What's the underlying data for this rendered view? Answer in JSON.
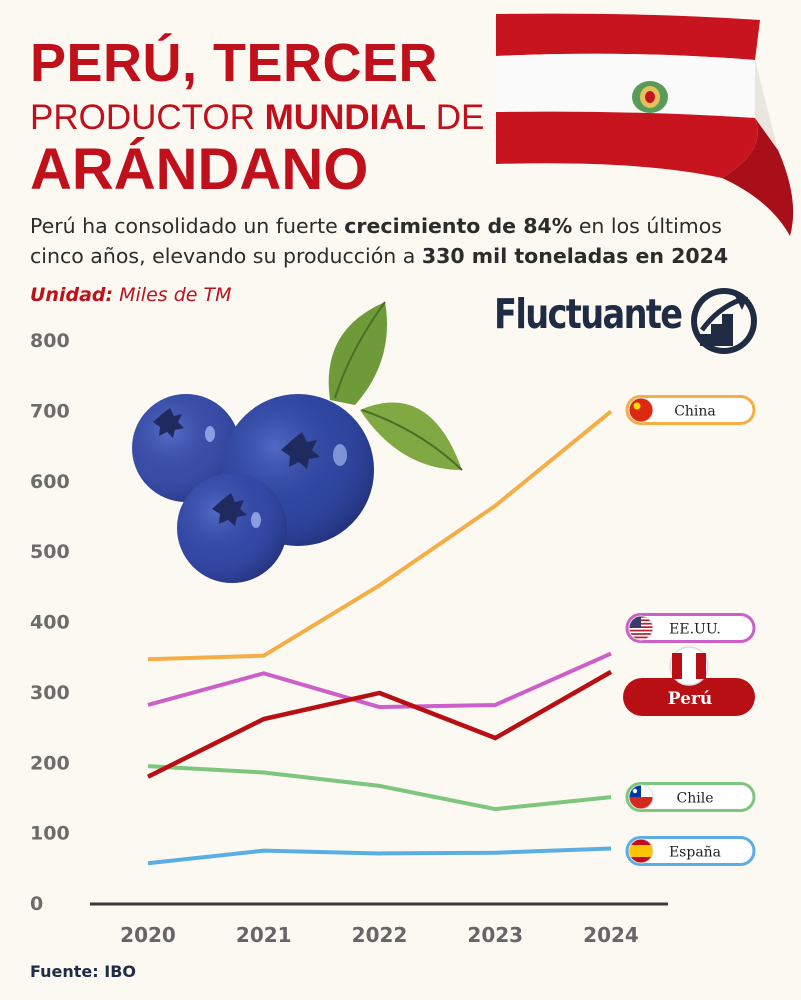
{
  "header": {
    "title_line1": "PERÚ, TERCER",
    "title_line2_pre": "PRODUCTOR ",
    "title_line2_bold": "MUNDIAL",
    "title_line2_post": " DE",
    "title_line3": "ARÁNDANO",
    "subtitle_part1": "Perú ha consolidado un fuerte ",
    "subtitle_bold1": "crecimiento de 84%",
    "subtitle_part2": " en los últimos cinco años, elevando su producción a ",
    "subtitle_bold2": "330 mil toneladas en 2024",
    "unit_label": "Unidad:",
    "unit_value": " Miles de TM"
  },
  "brand": {
    "name": "Fluctuante",
    "icon": "rising-stairs-arrow-icon"
  },
  "source": "Fuente: IBO",
  "decorations": {
    "flag": "peru-flag-ribbon",
    "illustration": "blueberries-with-leaves"
  },
  "chart_data": {
    "type": "line",
    "x": [
      "2020",
      "2021",
      "2022",
      "2023",
      "2024"
    ],
    "ylim": [
      0,
      800
    ],
    "yticks": [
      "0",
      "100",
      "200",
      "300",
      "400",
      "500",
      "600",
      "700",
      "800"
    ],
    "grid": false,
    "legend": "right-end-labels",
    "series": [
      {
        "name": "China",
        "values": [
          345,
          350,
          450,
          563,
          697
        ],
        "color": "#f5ad45",
        "flag": "china-flag-icon",
        "highlight": false
      },
      {
        "name": "EE.UU.",
        "values": [
          280,
          325,
          277,
          280,
          353
        ],
        "color": "#cc5fc9",
        "flag": "usa-flag-icon",
        "highlight": false
      },
      {
        "name": "Perú",
        "values": [
          178,
          260,
          297,
          233,
          327
        ],
        "color": "#b80f15",
        "flag": "peru-flag-icon",
        "highlight": true
      },
      {
        "name": "Chile",
        "values": [
          193,
          184,
          165,
          132,
          149
        ],
        "color": "#7dc67e",
        "flag": "chile-flag-icon",
        "highlight": false
      },
      {
        "name": "España",
        "values": [
          55,
          73,
          69,
          70,
          76
        ],
        "color": "#5aaee4",
        "flag": "spain-flag-icon",
        "highlight": false
      }
    ]
  }
}
